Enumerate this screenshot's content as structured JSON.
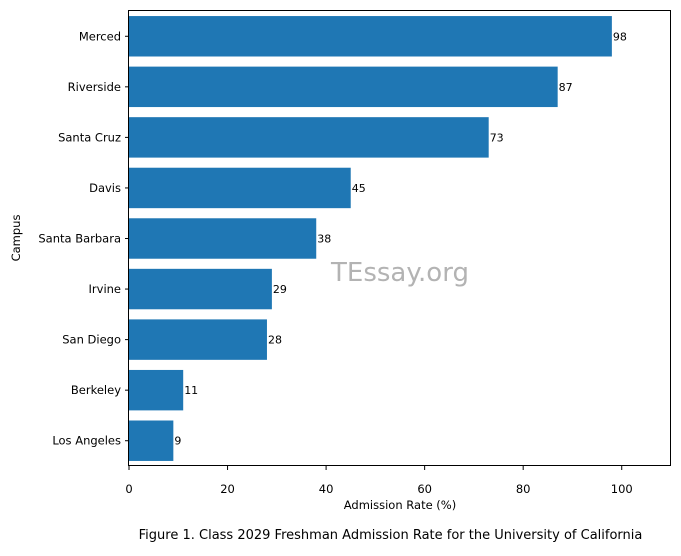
{
  "chart_data": {
    "type": "bar",
    "orientation": "horizontal",
    "categories": [
      "Merced",
      "Riverside",
      "Santa Cruz",
      "Davis",
      "Santa Barbara",
      "Irvine",
      "San Diego",
      "Berkeley",
      "Los Angeles"
    ],
    "values": [
      98,
      87,
      73,
      45,
      38,
      29,
      28,
      11,
      9
    ],
    "data_labels": [
      "98",
      "87",
      "73",
      "45",
      "38",
      "29",
      "28",
      "11",
      "9"
    ],
    "xlabel": "Admission Rate (%)",
    "ylabel": "Campus",
    "xlim": [
      0,
      110
    ],
    "xticks": [
      0,
      20,
      40,
      60,
      80,
      100
    ],
    "bar_color": "#1f77b4",
    "grid": false,
    "legend": "none"
  },
  "watermark": "TEssay.org",
  "caption": "Figure 1. Class 2029 Freshman Admission Rate for the University of California"
}
